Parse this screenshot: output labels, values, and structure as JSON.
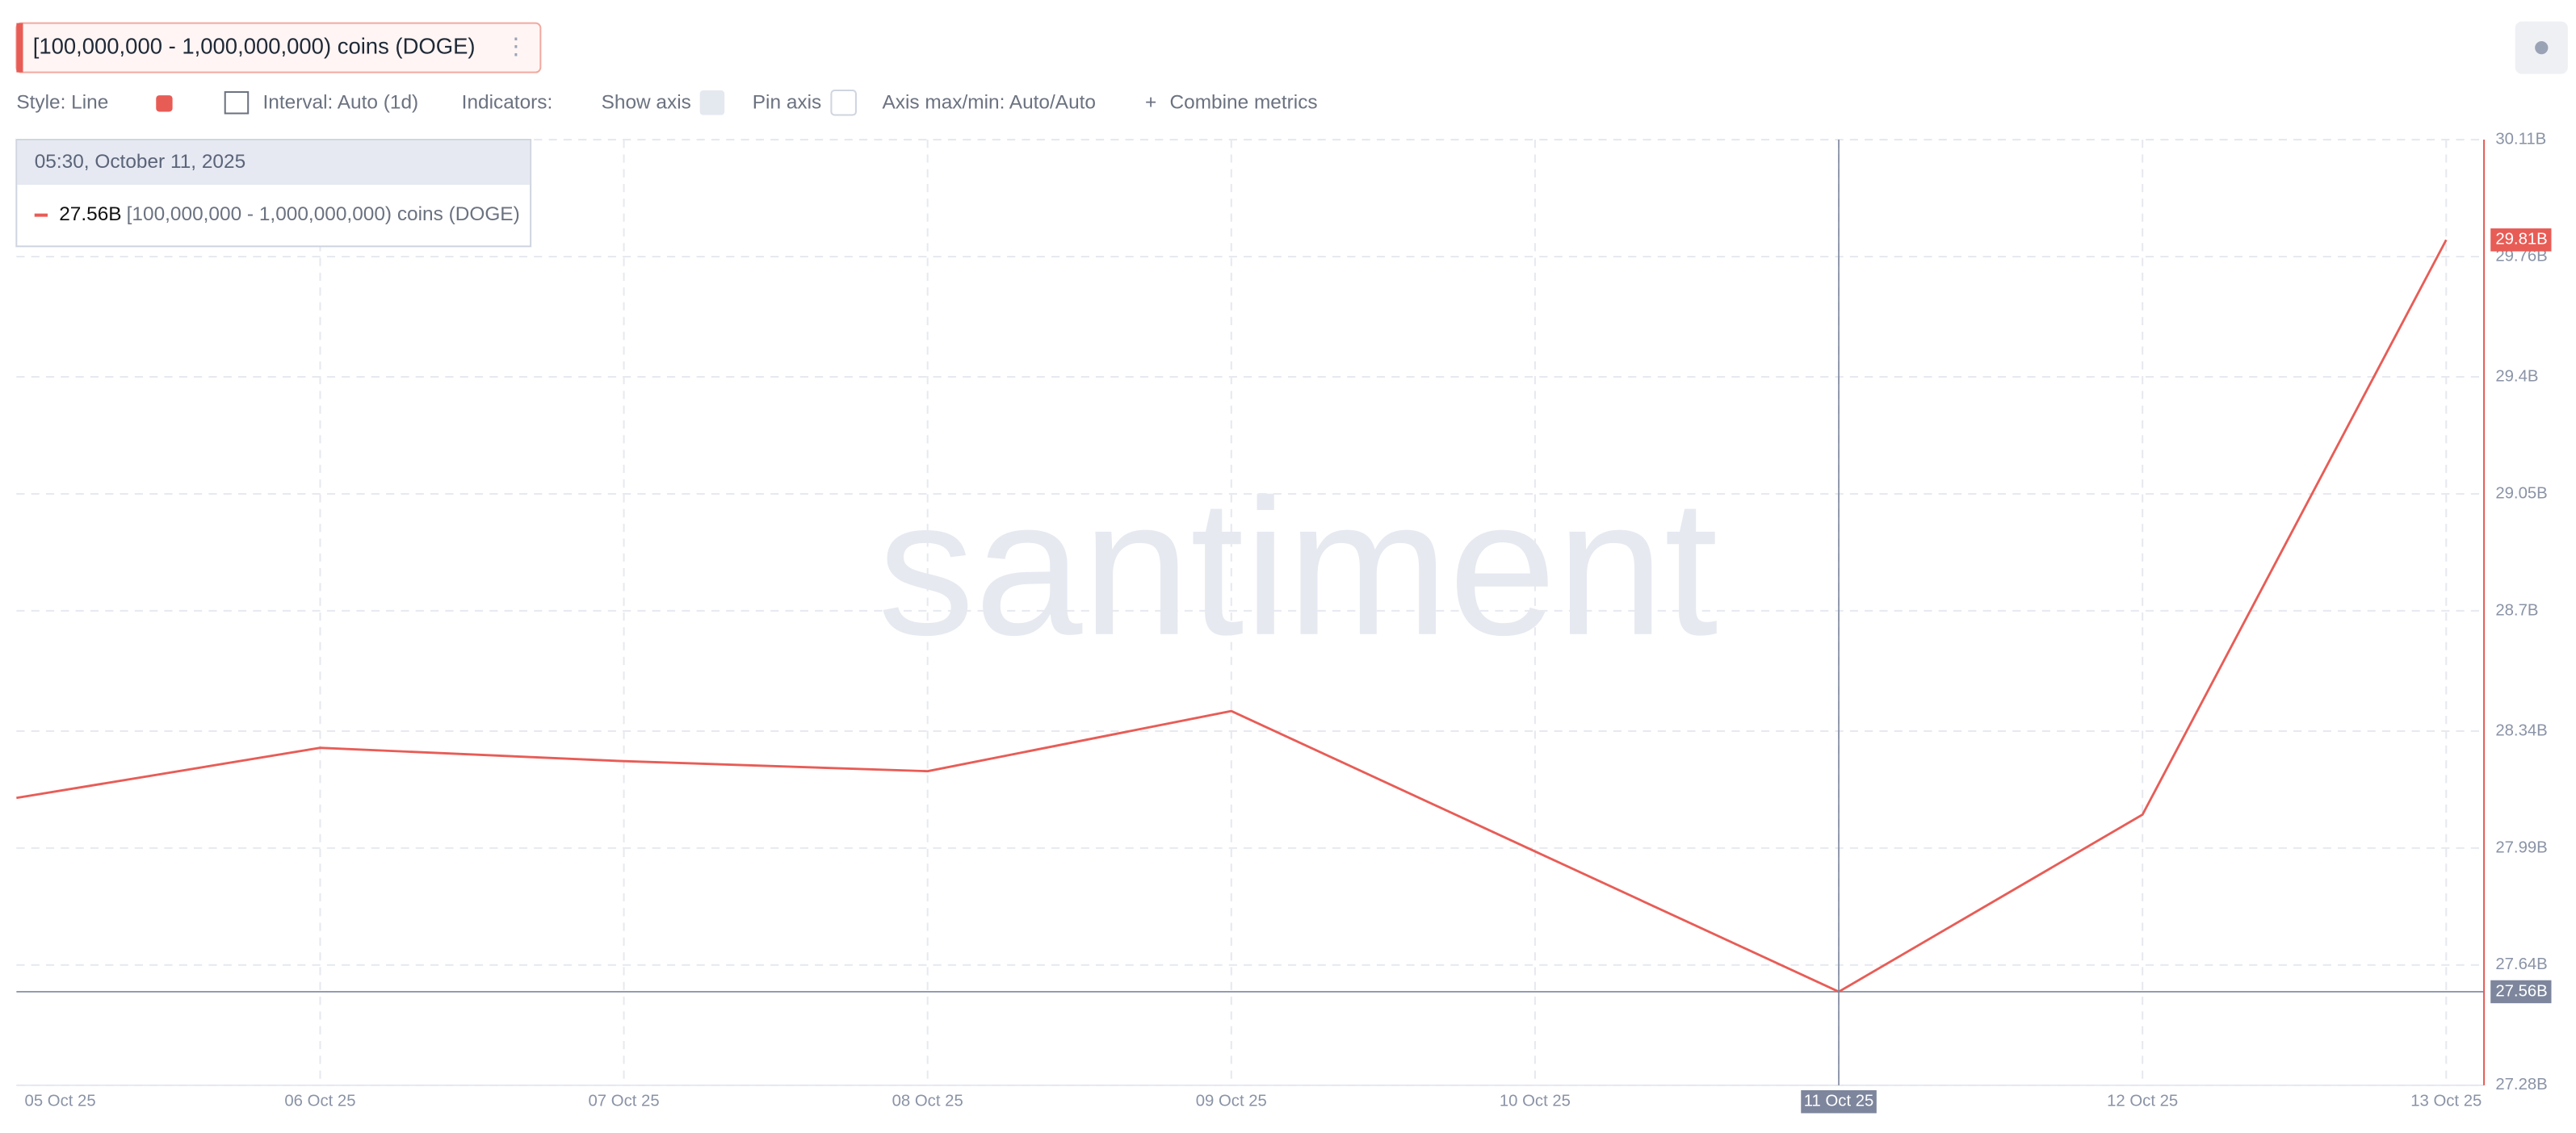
{
  "toolbar": {
    "style": "Style: Line",
    "interval": "Interval: Auto (1d)",
    "indicators": "Indicators:",
    "show_axis": "Show axis",
    "pin_axis": "Pin axis",
    "axis_minmax": "Axis max/min: Auto/Auto",
    "combine": "Combine metrics"
  },
  "watermark": "santiment",
  "chart_data": {
    "type": "line",
    "categories": [
      "05 Oct 25",
      "06 Oct 25",
      "07 Oct 25",
      "08 Oct 25",
      "09 Oct 25",
      "10 Oct 25",
      "11 Oct 25",
      "12 Oct 25",
      "13 Oct 25"
    ],
    "series": [
      {
        "name": "[100,000,000 - 1,000,000,000) coins (DOGE)",
        "color": "#e85c56",
        "values": [
          28.14,
          28.29,
          28.25,
          28.22,
          28.4,
          27.98,
          27.56,
          28.09,
          29.81
        ],
        "value_labels": [
          null,
          null,
          null,
          null,
          null,
          null,
          "27.56B",
          null,
          "29.81B"
        ]
      }
    ],
    "ylim": [
      27.28,
      30.11
    ],
    "yticks": [
      {
        "value": 27.28,
        "label": "27.28B"
      },
      {
        "value": 27.64,
        "label": "27.64B"
      },
      {
        "value": 27.99,
        "label": "27.99B"
      },
      {
        "value": 28.34,
        "label": "28.34B"
      },
      {
        "value": 28.7,
        "label": "28.7B"
      },
      {
        "value": 29.05,
        "label": "29.05B"
      },
      {
        "value": 29.4,
        "label": "29.4B"
      },
      {
        "value": 29.76,
        "label": "29.76B"
      },
      {
        "value": 30.11,
        "label": "30.11B"
      }
    ],
    "grid": true,
    "tooltip": {
      "time": "05:30, October 11, 2025",
      "index": 6
    }
  }
}
